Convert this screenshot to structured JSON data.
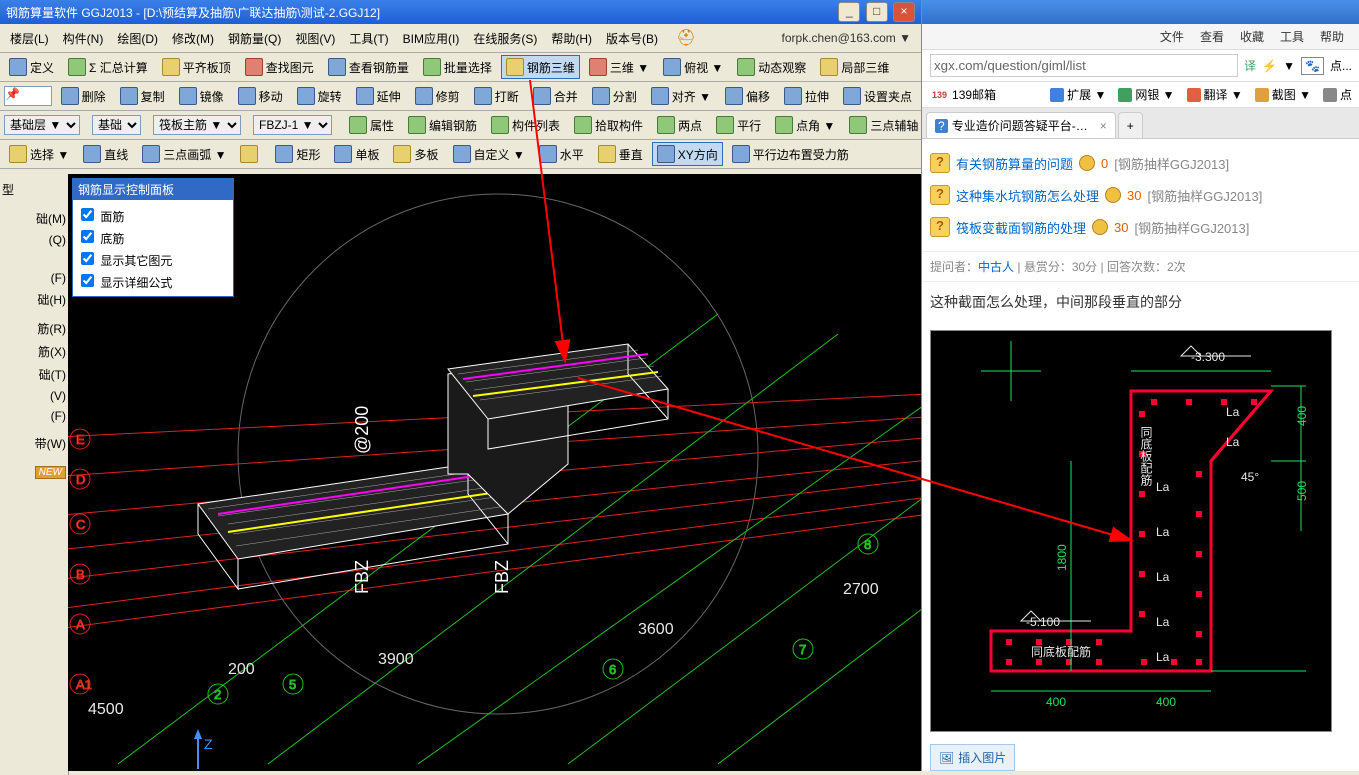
{
  "window": {
    "title": "钢筋算量软件 GGJ2013 - [D:\\预结算及抽筋\\广联达抽筋\\测试-2.GGJ12]",
    "min": "_",
    "max": "□",
    "close": "×"
  },
  "menu": {
    "items": [
      "楼层(L)",
      "构件(N)",
      "绘图(D)",
      "修改(M)",
      "钢筋量(Q)",
      "视图(V)",
      "工具(T)",
      "BIM应用(I)",
      "在线服务(S)",
      "帮助(H)",
      "版本号(B)"
    ],
    "email": "forpk.chen@163.com ▼"
  },
  "tb1": {
    "items": [
      "定义",
      "Σ 汇总计算",
      "平齐板顶",
      "查找图元",
      "查看钢筋量",
      "批量选择",
      "钢筋三维",
      "三维 ▼",
      "俯视 ▼",
      "动态观察",
      "局部三维"
    ]
  },
  "tb2": {
    "items": [
      "删除",
      "复制",
      "镜像",
      "移动",
      "旋转",
      "延伸",
      "修剪",
      "打断",
      "合并",
      "分割",
      "对齐 ▼",
      "偏移",
      "拉伸",
      "设置夹点"
    ]
  },
  "tb3": {
    "sel1": "基础层 ▼",
    "sel2": "基础",
    "sel3": "筏板主筋 ▼",
    "sel4": "FBZJ-1 ▼",
    "items": [
      "属性",
      "编辑钢筋",
      "构件列表",
      "拾取构件",
      "两点",
      "平行",
      "点角 ▼",
      "三点辅轴 ▼"
    ]
  },
  "tb4": {
    "items": [
      "选择 ▼",
      "直线",
      "三点画弧 ▼",
      "",
      "矩形",
      "单板",
      "多板",
      "自定义 ▼",
      "水平",
      "垂直",
      "XY方向",
      "平行边布置受力筋"
    ]
  },
  "leftPanel": {
    "hdr": "型",
    "items": [
      "",
      "础(M)",
      "(Q)",
      "",
      "",
      "",
      "(F)",
      "础(H)",
      "",
      "筋(R)",
      "筋(X)",
      "础(T)",
      "(V)",
      "(F)",
      "",
      "带(W)",
      ""
    ]
  },
  "ctrlPanel": {
    "title": "钢筋显示控制面板",
    "opts": [
      "面筋",
      "底筋",
      "显示其它图元",
      "显示详细公式"
    ]
  },
  "viewport": {
    "axis_labels": [
      "A1",
      "A",
      "B",
      "C",
      "D",
      "E"
    ],
    "axis_nums": [
      "2",
      "5",
      "6",
      "7",
      "8"
    ],
    "dims": [
      "4500",
      "200",
      "3900",
      "3600",
      "2700"
    ],
    "text_labels": [
      "FBZ",
      "FBZ",
      "@200"
    ],
    "grid_color": "#e02020",
    "alt_grid_color": "#20c020",
    "axis_color": "#fff",
    "model_color": "#fff",
    "highlight1": "#ff00ff",
    "highlight2": "#ffff00"
  },
  "browser": {
    "menu": [
      "文件",
      "查看",
      "收藏",
      "工具",
      "帮助"
    ],
    "url": "xgx.com/question/giml/list",
    "bookmarks": [
      {
        "label": "139邮箱",
        "color": "#d04030",
        "prefix": "139"
      },
      {
        "label": "扩展 ▼",
        "color": "#4080e0"
      },
      {
        "label": "网银 ▼",
        "color": "#40a060"
      },
      {
        "label": "翻译 ▼",
        "color": "#e06040"
      },
      {
        "label": "截图 ▼",
        "color": "#e0a040"
      },
      {
        "label": "点",
        "color": "#888"
      }
    ],
    "tab": {
      "icon": "?",
      "label": "专业造价问题答疑平台-广联达",
      "x": "×",
      "plus": "+"
    },
    "questions": [
      {
        "title": "有关钢筋算量的问题",
        "pts": "0",
        "tag": "[钢筋抽样GGJ2013]"
      },
      {
        "title": "这种集水坑钢筋怎么处理",
        "pts": "30",
        "tag": "[钢筋抽样GGJ2013]"
      },
      {
        "title": "筏板变截面钢筋的处理",
        "pts": "30",
        "tag": "[钢筋抽样GGJ2013]"
      }
    ],
    "meta": {
      "asker_l": "提问者：",
      "asker": "中古人",
      "bounty": "悬赏分：30分",
      "replies": "回答次数：2次",
      "sep": " | "
    },
    "qtext": "这种截面怎么处理，中间那段垂直的部分",
    "cad": {
      "dims_top": "-3.300",
      "dims_bot": "-5.100",
      "v_dims": [
        "400",
        "500",
        "1800"
      ],
      "h_dims": [
        "400",
        "400"
      ],
      "labels": [
        "La",
        "La",
        "La",
        "La",
        "La",
        "La",
        "La",
        "45°"
      ],
      "txt1": "同底板配筋",
      "txt2": "同底板配筋",
      "line_color": "#ff0030",
      "dim_color": "#20e060",
      "text_color": "#e8e8e8"
    },
    "insert": "插入图片"
  }
}
